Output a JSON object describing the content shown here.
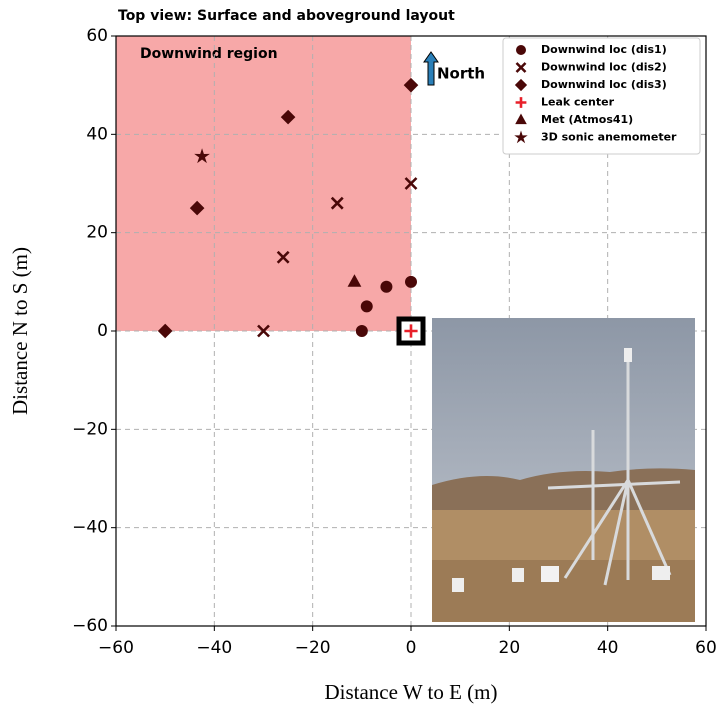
{
  "chart_data": {
    "type": "scatter",
    "title": "Top view: Surface and aboveground layout",
    "xlabel": "Distance W to E (m)",
    "ylabel": "Distance N to S (m)",
    "xlim": [
      -60,
      60
    ],
    "ylim": [
      -60,
      60
    ],
    "xticks": [
      {
        "value": -60,
        "label": "−60"
      },
      {
        "value": -40,
        "label": "−40"
      },
      {
        "value": -20,
        "label": "−20"
      },
      0,
      20,
      40,
      60
    ],
    "yticks": [
      {
        "value": -60,
        "label": "−60"
      },
      {
        "value": -40,
        "label": "−40"
      },
      {
        "value": -20,
        "label": "−20"
      },
      0,
      20,
      40,
      60
    ],
    "grid": true,
    "region": {
      "label": "Downwind region",
      "xlim": [
        -60,
        0
      ],
      "ylim": [
        0,
        60
      ],
      "color": "#f7a8a8"
    },
    "north_label": "North",
    "legend": "upper right",
    "series": [
      {
        "name": "Downwind  loc (dis1)",
        "marker": "circle",
        "color": "#4a0808",
        "x": [
          0,
          -5,
          -9,
          -10
        ],
        "values": [
          10,
          9,
          5,
          0
        ]
      },
      {
        "name": "Downwind loc (dis2)",
        "marker": "x",
        "color": "#4a0808",
        "x": [
          0,
          -15,
          -26,
          -30
        ],
        "values": [
          30,
          26,
          15,
          0
        ]
      },
      {
        "name": "Downwind loc (dis3)",
        "marker": "diamond",
        "color": "#4a0808",
        "x": [
          0,
          -25,
          -43.5,
          -50
        ],
        "values": [
          50,
          43.5,
          25,
          0
        ]
      },
      {
        "name": "Leak center",
        "marker": "plus",
        "color": "#e8202a",
        "x": [
          0
        ],
        "values": [
          0
        ]
      },
      {
        "name": "Met (Atmos41)",
        "marker": "triangle",
        "color": "#4a0808",
        "x": [
          -11.5
        ],
        "values": [
          10
        ]
      },
      {
        "name": "3D sonic anemometer",
        "marker": "star",
        "color": "#4a0808",
        "x": [
          -42.5
        ],
        "values": [
          35.5
        ]
      }
    ]
  }
}
